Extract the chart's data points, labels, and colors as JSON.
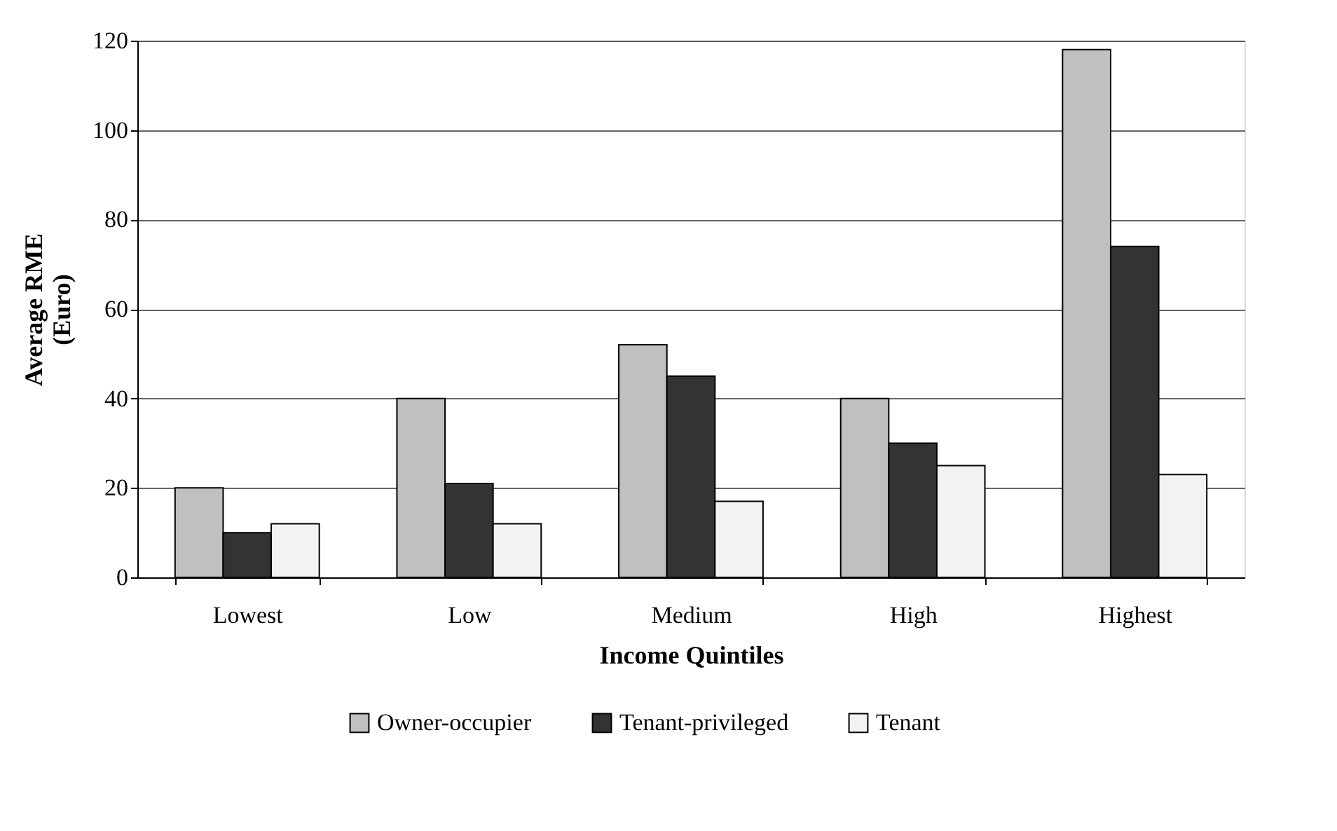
{
  "chart_data": {
    "type": "bar",
    "xlabel": "Income Quintiles",
    "ylabel": "Average RME (Euro)",
    "categories": [
      "Lowest",
      "Low",
      "Medium",
      "High",
      "Highest"
    ],
    "series": [
      {
        "name": "Owner-occupier",
        "color": "#c0c0c0",
        "values": [
          20,
          40,
          52,
          40,
          118
        ]
      },
      {
        "name": "Tenant-privileged",
        "color": "#333333",
        "values": [
          10,
          21,
          45,
          30,
          74
        ]
      },
      {
        "name": "Tenant",
        "color": "#f2f2f2",
        "values": [
          12,
          12,
          17,
          25,
          23
        ]
      }
    ],
    "ylim": [
      0,
      120
    ],
    "yticks": [
      0,
      20,
      40,
      60,
      80,
      100,
      120
    ],
    "grid": "y",
    "legend": "bottom"
  }
}
